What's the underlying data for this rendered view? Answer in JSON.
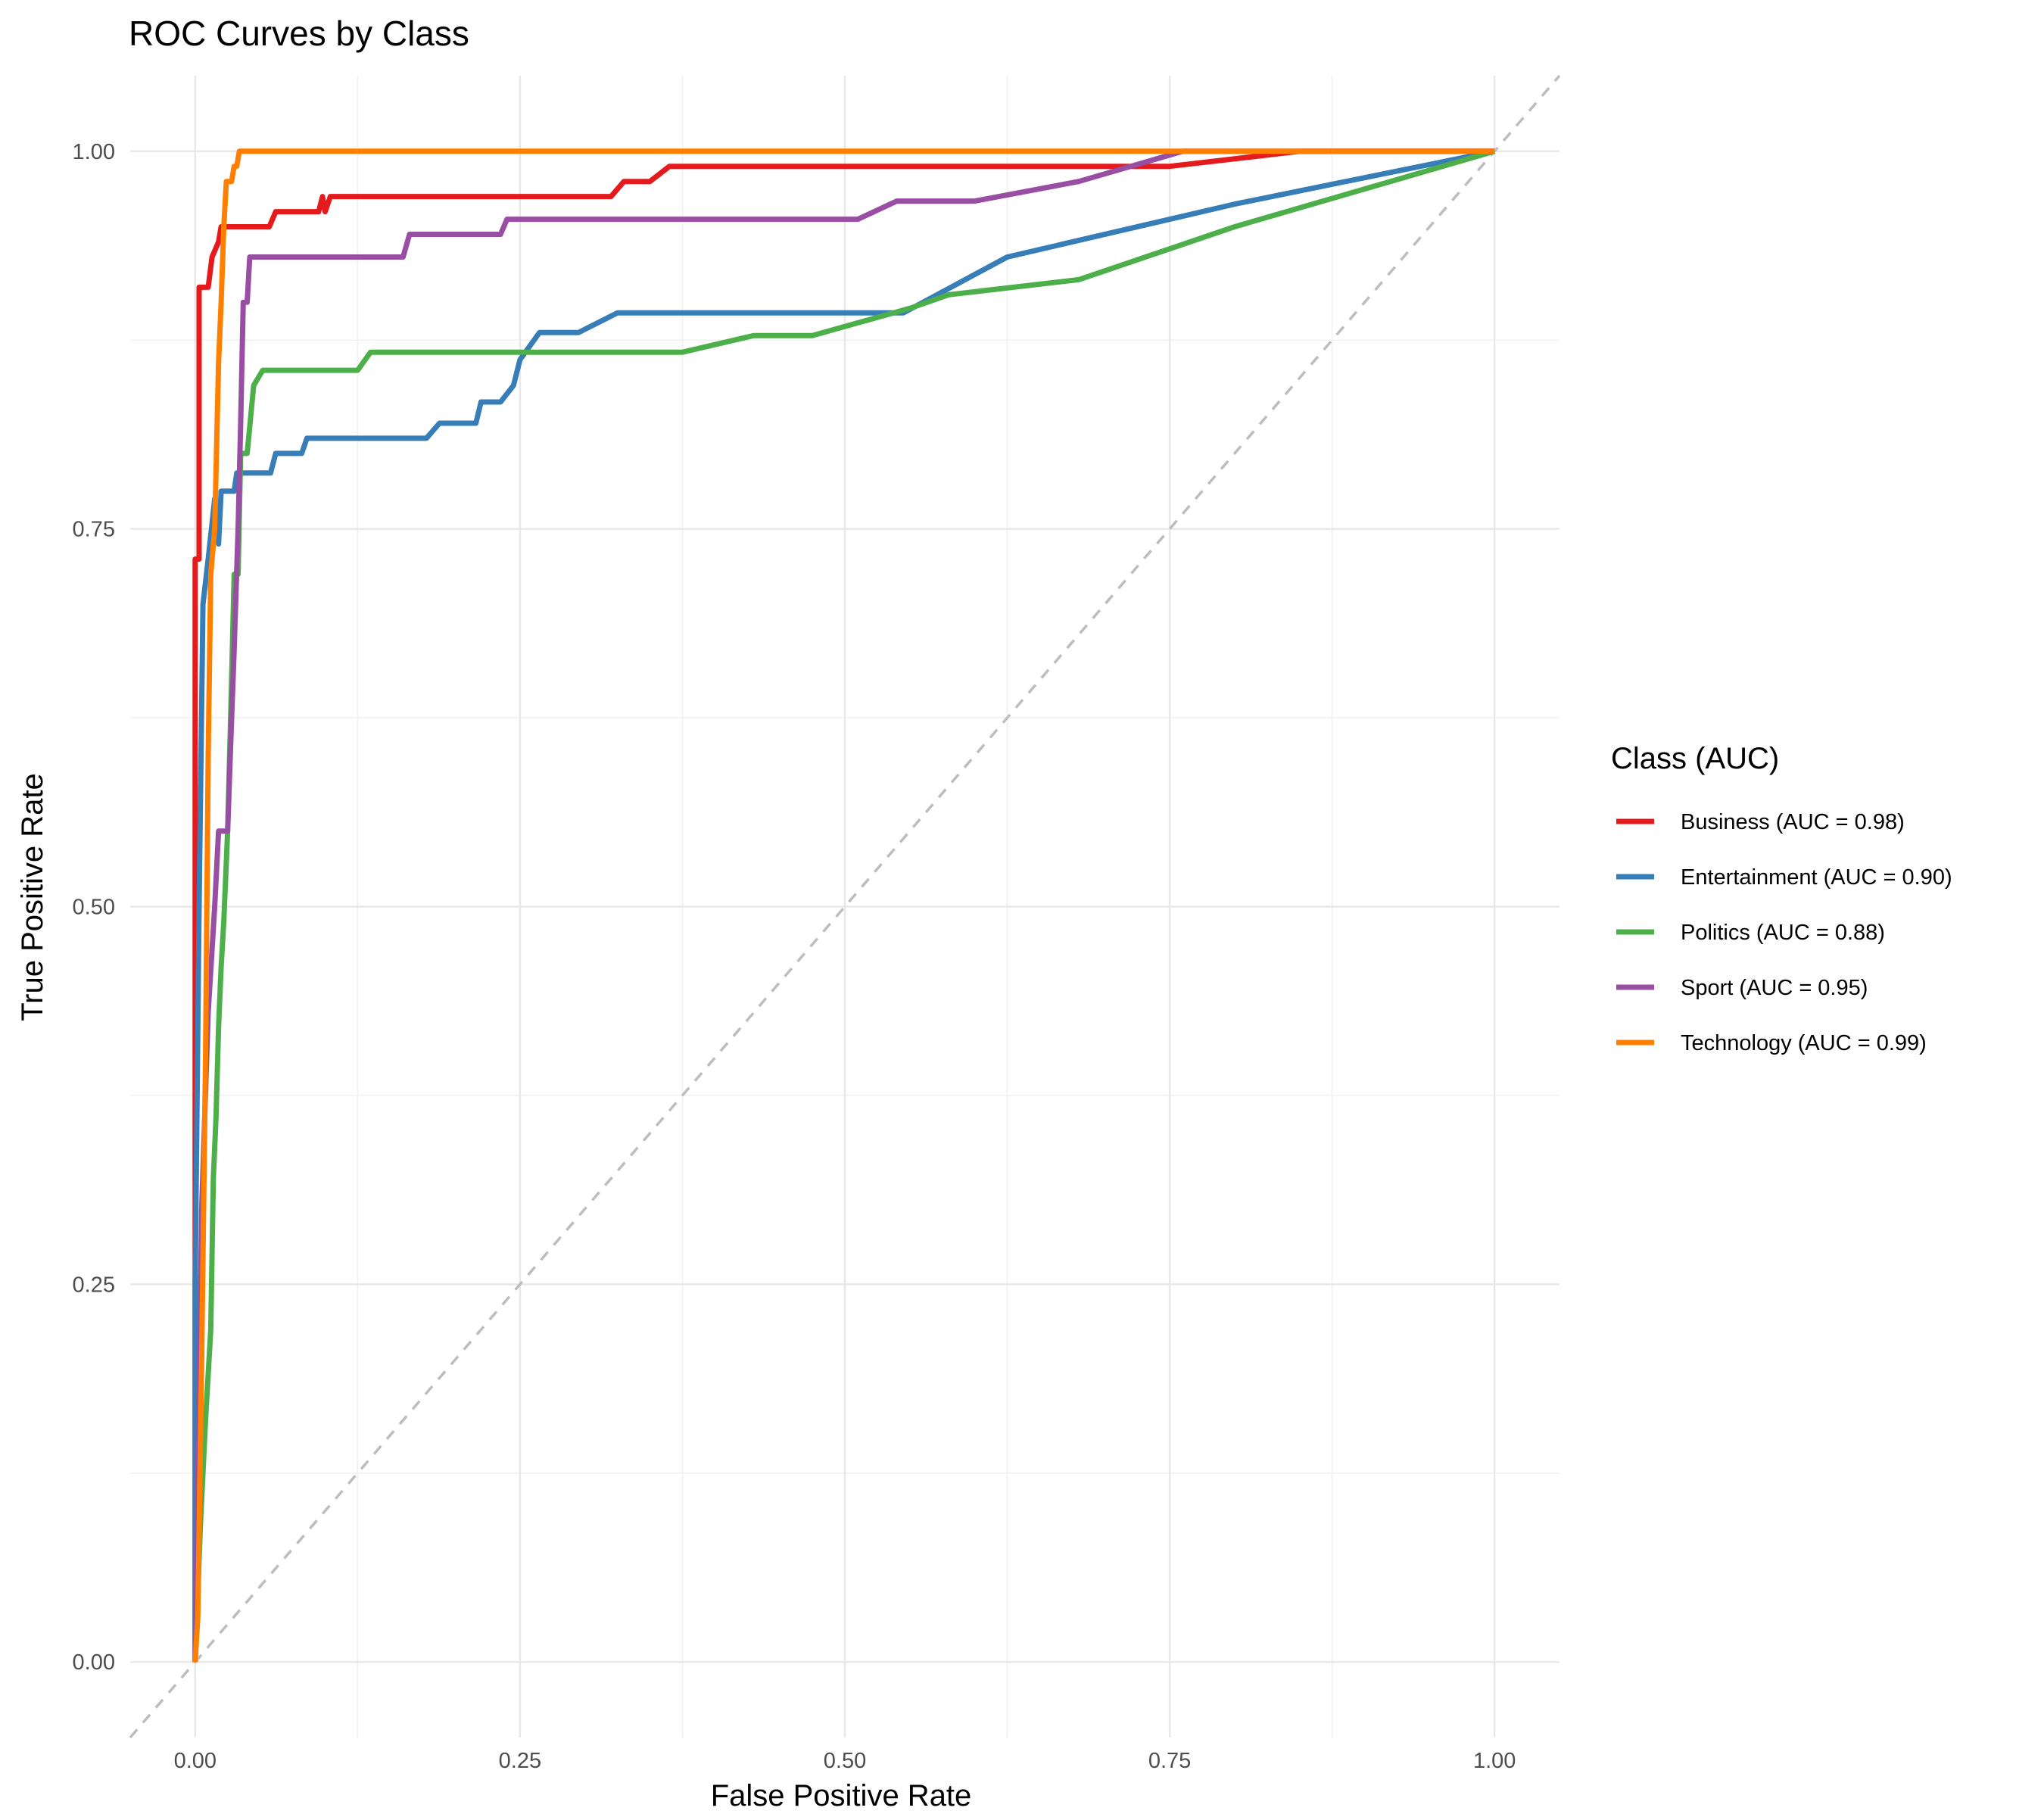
{
  "chart_data": {
    "type": "line",
    "title": "ROC Curves by Class",
    "xlabel": "False Positive Rate",
    "ylabel": "True Positive Rate",
    "xlim": [
      -0.05,
      1.05
    ],
    "ylim": [
      -0.05,
      1.05
    ],
    "x_ticks": [
      "0.00",
      "0.25",
      "0.50",
      "0.75",
      "1.00"
    ],
    "y_ticks": [
      "0.00",
      "0.25",
      "0.50",
      "0.75",
      "1.00"
    ],
    "grid": true,
    "reference_line": {
      "from": [
        0,
        0
      ],
      "to": [
        1,
        1
      ],
      "style": "dashed",
      "color": "#bdbdbd"
    },
    "legend": {
      "title": "Class (AUC)",
      "position": "right"
    },
    "series": [
      {
        "name": "Business (AUC = 0.98)",
        "color": "#E41A1C",
        "points": [
          [
            0,
            0
          ],
          [
            0,
            0.73
          ],
          [
            0.003,
            0.73
          ],
          [
            0.003,
            0.91
          ],
          [
            0.01,
            0.91
          ],
          [
            0.013,
            0.93
          ],
          [
            0.018,
            0.94
          ],
          [
            0.02,
            0.95
          ],
          [
            0.057,
            0.95
          ],
          [
            0.062,
            0.96
          ],
          [
            0.095,
            0.96
          ],
          [
            0.098,
            0.97
          ],
          [
            0.1,
            0.96
          ],
          [
            0.104,
            0.97
          ],
          [
            0.32,
            0.97
          ],
          [
            0.33,
            0.98
          ],
          [
            0.35,
            0.98
          ],
          [
            0.365,
            0.99
          ],
          [
            0.75,
            0.99
          ],
          [
            0.85,
            1.0
          ],
          [
            1.0,
            1.0
          ]
        ]
      },
      {
        "name": "Entertainment (AUC = 0.90)",
        "color": "#377EB8",
        "points": [
          [
            0,
            0
          ],
          [
            0,
            0.25
          ],
          [
            0.003,
            0.5
          ],
          [
            0.006,
            0.7
          ],
          [
            0.01,
            0.73
          ],
          [
            0.015,
            0.77
          ],
          [
            0.018,
            0.74
          ],
          [
            0.02,
            0.775
          ],
          [
            0.03,
            0.775
          ],
          [
            0.032,
            0.787
          ],
          [
            0.058,
            0.787
          ],
          [
            0.062,
            0.8
          ],
          [
            0.082,
            0.8
          ],
          [
            0.086,
            0.81
          ],
          [
            0.178,
            0.81
          ],
          [
            0.188,
            0.82
          ],
          [
            0.216,
            0.82
          ],
          [
            0.22,
            0.834
          ],
          [
            0.235,
            0.834
          ],
          [
            0.245,
            0.845
          ],
          [
            0.25,
            0.862
          ],
          [
            0.265,
            0.88
          ],
          [
            0.295,
            0.88
          ],
          [
            0.325,
            0.893
          ],
          [
            0.545,
            0.893
          ],
          [
            0.625,
            0.93
          ],
          [
            0.8,
            0.965
          ],
          [
            1.0,
            1.0
          ]
        ]
      },
      {
        "name": "Politics (AUC = 0.88)",
        "color": "#4DAF4A",
        "points": [
          [
            0,
            0
          ],
          [
            0.004,
            0.09
          ],
          [
            0.008,
            0.16
          ],
          [
            0.012,
            0.22
          ],
          [
            0.014,
            0.32
          ],
          [
            0.016,
            0.36
          ],
          [
            0.018,
            0.42
          ],
          [
            0.02,
            0.46
          ],
          [
            0.022,
            0.49
          ],
          [
            0.025,
            0.55
          ],
          [
            0.028,
            0.65
          ],
          [
            0.03,
            0.72
          ],
          [
            0.033,
            0.72
          ],
          [
            0.035,
            0.8
          ],
          [
            0.04,
            0.8
          ],
          [
            0.045,
            0.845
          ],
          [
            0.052,
            0.855
          ],
          [
            0.125,
            0.855
          ],
          [
            0.135,
            0.867
          ],
          [
            0.375,
            0.867
          ],
          [
            0.43,
            0.878
          ],
          [
            0.475,
            0.878
          ],
          [
            0.55,
            0.896
          ],
          [
            0.58,
            0.905
          ],
          [
            0.68,
            0.915
          ],
          [
            0.8,
            0.95
          ],
          [
            1.0,
            1.0
          ]
        ]
      },
      {
        "name": "Sport (AUC = 0.95)",
        "color": "#984EA3",
        "points": [
          [
            0,
            0
          ],
          [
            0.005,
            0.3
          ],
          [
            0.01,
            0.43
          ],
          [
            0.015,
            0.5
          ],
          [
            0.018,
            0.55
          ],
          [
            0.025,
            0.55
          ],
          [
            0.027,
            0.6
          ],
          [
            0.03,
            0.67
          ],
          [
            0.033,
            0.75
          ],
          [
            0.035,
            0.82
          ],
          [
            0.037,
            0.9
          ],
          [
            0.04,
            0.9
          ],
          [
            0.042,
            0.93
          ],
          [
            0.16,
            0.93
          ],
          [
            0.165,
            0.945
          ],
          [
            0.235,
            0.945
          ],
          [
            0.24,
            0.955
          ],
          [
            0.51,
            0.955
          ],
          [
            0.54,
            0.967
          ],
          [
            0.6,
            0.967
          ],
          [
            0.68,
            0.98
          ],
          [
            0.76,
            1.0
          ],
          [
            1.0,
            1.0
          ]
        ]
      },
      {
        "name": "Technology (AUC = 0.99)",
        "color": "#FF7F00",
        "points": [
          [
            0,
            0
          ],
          [
            0.002,
            0.03
          ],
          [
            0.005,
            0.2
          ],
          [
            0.008,
            0.4
          ],
          [
            0.01,
            0.6
          ],
          [
            0.012,
            0.72
          ],
          [
            0.015,
            0.75
          ],
          [
            0.018,
            0.86
          ],
          [
            0.02,
            0.9
          ],
          [
            0.022,
            0.95
          ],
          [
            0.024,
            0.98
          ],
          [
            0.028,
            0.98
          ],
          [
            0.03,
            0.99
          ],
          [
            0.032,
            0.99
          ],
          [
            0.034,
            1.0
          ],
          [
            1.0,
            1.0
          ]
        ]
      }
    ]
  }
}
